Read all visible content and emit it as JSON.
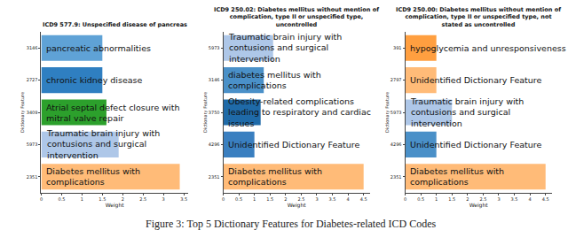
{
  "caption": "Figure 3: Top 5 Dictionary Features for Diabetes-related ICD Codes",
  "chart_data": [
    {
      "type": "bar",
      "orientation": "horizontal",
      "title": "ICD9 577.9: Unspecified disease of pancreas",
      "x_label": "Weight",
      "y_label": "Dictionary Feature",
      "categories": [
        "3146",
        "2727",
        "3409",
        "5973",
        "2351"
      ],
      "labels": [
        "pancreatic abnormalities",
        "chronic kidney disease",
        "Atrial septal defect closure with mitral valve repair",
        "Traumatic brain injury with contusions and surgical intervention",
        "Diabetes mellitus with complications"
      ],
      "values": [
        1.5,
        1.5,
        1.6,
        1.9,
        3.4
      ],
      "colors": [
        "#5fa2d6",
        "#2f7fc1",
        "#2ca02c",
        "#aec7e8",
        "#ffbb78"
      ],
      "xlim": [
        0,
        3.6
      ],
      "xticks": [
        0,
        0.5,
        1,
        1.5,
        2,
        2.5,
        3,
        3.5
      ]
    },
    {
      "type": "bar",
      "orientation": "horizontal",
      "title": "ICD9 250.02: Diabetes mellitus without mention of complication, type II or unspecified type, uncontrolled",
      "x_label": "Weight",
      "y_label": "Dictionary Feature",
      "categories": [
        "5973",
        "3146",
        "3750",
        "4296",
        "2351"
      ],
      "labels": [
        "Traumatic brain injury with contusions and surgical intervention",
        "diabetes mellitus with complications",
        "Obesity-related complications leading to respiratory and cardiac issues",
        "Unidentified Dictionary Feature",
        "Diabetes mellitus with complications"
      ],
      "values": [
        1.6,
        1.3,
        1.2,
        1.0,
        4.5
      ],
      "colors": [
        "#aec7e8",
        "#4a90c8",
        "#1f6aa8",
        "#3a7fc0",
        "#ffbb78"
      ],
      "xlim": [
        0,
        4.7
      ],
      "xticks": [
        0,
        0.5,
        1,
        1.5,
        2,
        2.5,
        3,
        3.5,
        4,
        4.5
      ]
    },
    {
      "type": "bar",
      "orientation": "horizontal",
      "title": "ICD9 250.00: Diabetes mellitus without mention of complication, type II or unspecified type, not stated as uncontrolled",
      "x_label": "Weight",
      "y_label": "Dictionary Feature",
      "categories": [
        "391",
        "2797",
        "5973",
        "4296",
        "2351"
      ],
      "labels": [
        "hypoglycemia and unresponsiveness",
        "Unidentified Dictionary Feature",
        "Traumatic brain injury with contusions and surgical intervention",
        "Unidentified Dictionary Feature",
        "Diabetes mellitus with complications"
      ],
      "values": [
        1.0,
        1.0,
        1.5,
        1.0,
        4.5
      ],
      "colors": [
        "#ff9f40",
        "#ffbb78",
        "#aec7e8",
        "#4a90c8",
        "#ffbb78"
      ],
      "xlim": [
        0,
        4.7
      ],
      "xticks": [
        0,
        0.5,
        1,
        1.5,
        2,
        2.5,
        3,
        3.5,
        4,
        4.5
      ]
    }
  ]
}
